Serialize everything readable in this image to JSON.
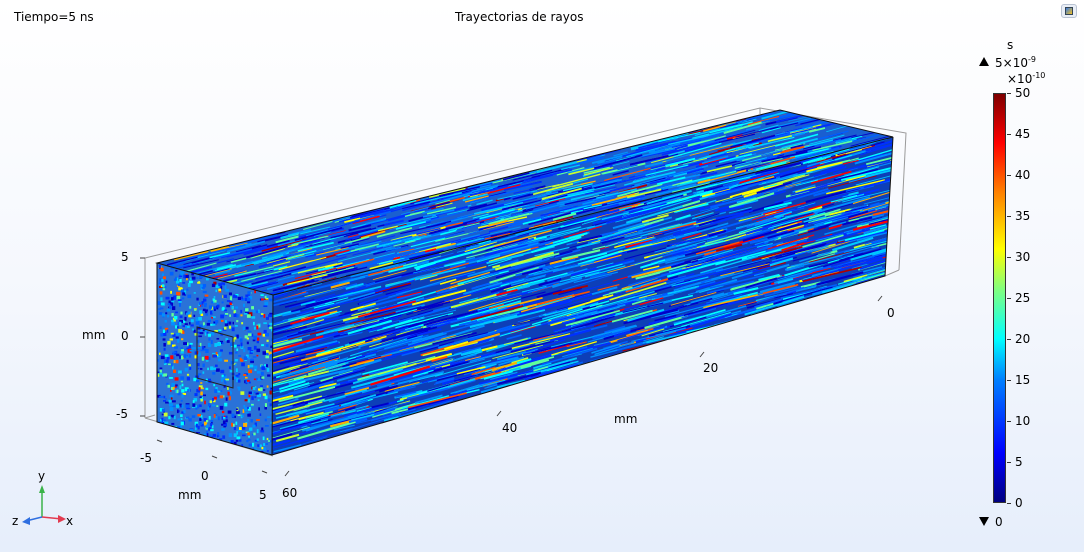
{
  "header": {
    "time_label": "Tiempo=5 ns",
    "title": "Trayectorias de rayos"
  },
  "colorbar": {
    "unit": "s",
    "max_label": "5×10",
    "max_exp": "-9",
    "scale_label": "×10",
    "scale_exp": "-10",
    "ticks": [
      "50",
      "45",
      "40",
      "35",
      "30",
      "25",
      "20",
      "15",
      "10",
      "5",
      "0"
    ],
    "min_label": "0",
    "colormap": "jet"
  },
  "axes": {
    "y_label": "mm",
    "y_ticks": [
      "5",
      "0",
      "-5"
    ],
    "length_label": "mm",
    "length_ticks": [
      "0",
      "20",
      "40",
      "60"
    ],
    "depth_label": "mm",
    "depth_ticks": [
      "-5",
      "0",
      "5"
    ]
  },
  "triad": {
    "x": "x",
    "y": "y",
    "z": "z"
  },
  "icons": {
    "corner": "graphics-window-icon"
  }
}
